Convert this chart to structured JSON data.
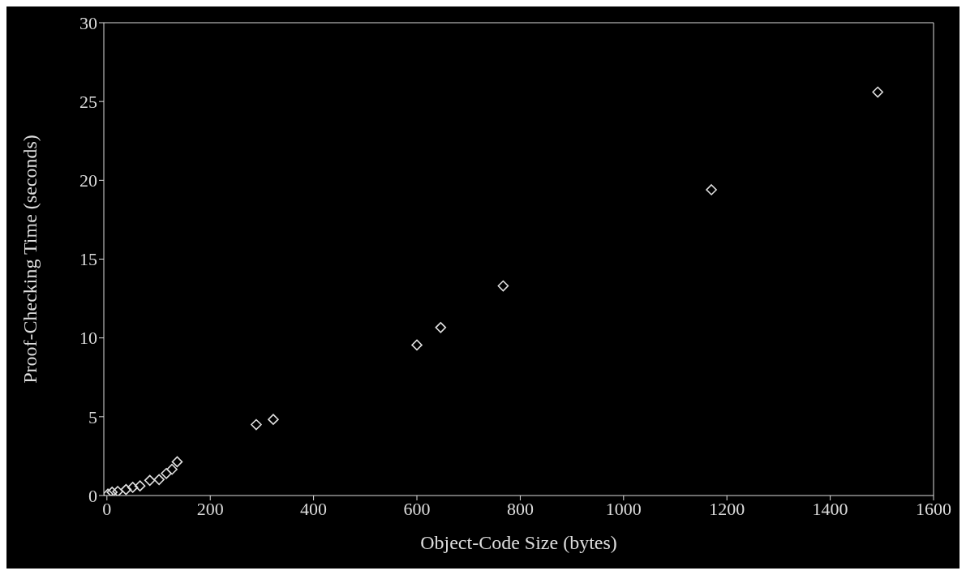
{
  "chart_data": {
    "type": "scatter",
    "xlabel": "Object-Code Size (bytes)",
    "ylabel": "Proof-Checking Time (seconds)",
    "x": [
      2,
      10,
      21,
      37,
      50,
      64,
      83,
      101,
      115,
      126,
      136,
      289,
      322,
      600,
      646,
      767,
      1170,
      1492
    ],
    "values": [
      0.09,
      0.21,
      0.26,
      0.38,
      0.52,
      0.61,
      0.96,
      1.01,
      1.4,
      1.66,
      2.14,
      4.5,
      4.83,
      9.55,
      10.66,
      13.3,
      19.4,
      25.6
    ],
    "color": "#e0e0e0",
    "marker": "diamond",
    "xlim": [
      -6,
      1600
    ],
    "xticks": [
      0,
      200,
      400,
      600,
      800,
      1000,
      1200,
      1400,
      1600
    ],
    "ylim": [
      0,
      30
    ],
    "yticks": [
      0,
      5,
      10,
      15,
      20,
      25,
      30
    ],
    "grid": false,
    "legend": false
  }
}
